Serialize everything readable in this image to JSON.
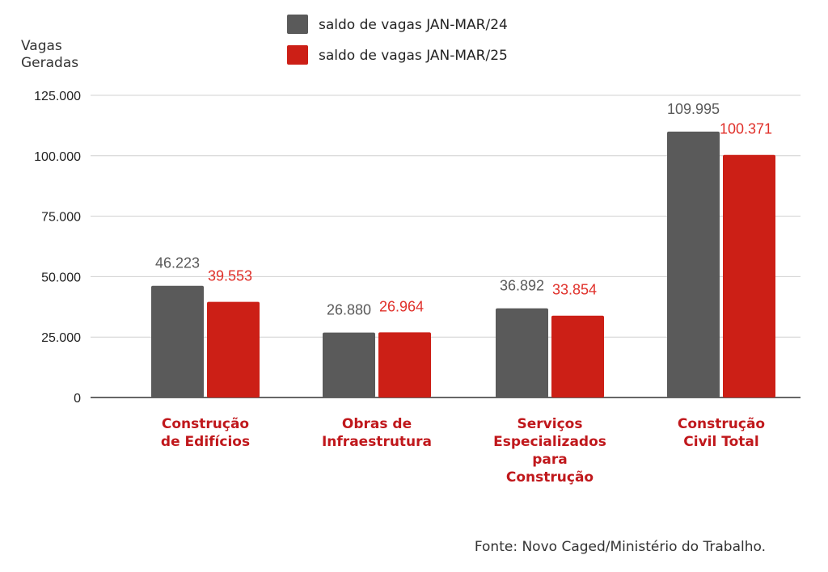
{
  "chart_data": {
    "type": "bar",
    "ylabel": "Vagas Geradas",
    "ylim": [
      0,
      125000
    ],
    "yticks": [
      "0",
      "25.000",
      "50.000",
      "75.000",
      "100.000",
      "125.000"
    ],
    "ytick_values": [
      0,
      25000,
      50000,
      75000,
      100000,
      125000
    ],
    "grid": true,
    "legend_position": "top",
    "categories": [
      [
        "Construção",
        "de Edifícios"
      ],
      [
        "Obras de",
        "Infraestrutura"
      ],
      [
        "Serviços",
        "Especializados",
        "para",
        "Construção"
      ],
      [
        "Construção",
        "Civil Total"
      ]
    ],
    "series": [
      {
        "name": "saldo de vagas JAN-MAR/24",
        "color": "#5a5a5a",
        "label_color": "#5a5a5a",
        "values": [
          46223,
          26880,
          36892,
          109995
        ],
        "labels": [
          "46.223",
          "26.880",
          "36.892",
          "109.995"
        ]
      },
      {
        "name": "saldo de vagas JAN-MAR/25",
        "color": "#cc1f16",
        "label_color": "#e0302a",
        "values": [
          39553,
          26964,
          33854,
          100371
        ],
        "labels": [
          "39.553",
          "26.964",
          "33.854",
          "100.371"
        ]
      }
    ],
    "category_color": "#c0181c"
  },
  "source_note": "Fonte: Novo Caged/Ministério do Trabalho."
}
